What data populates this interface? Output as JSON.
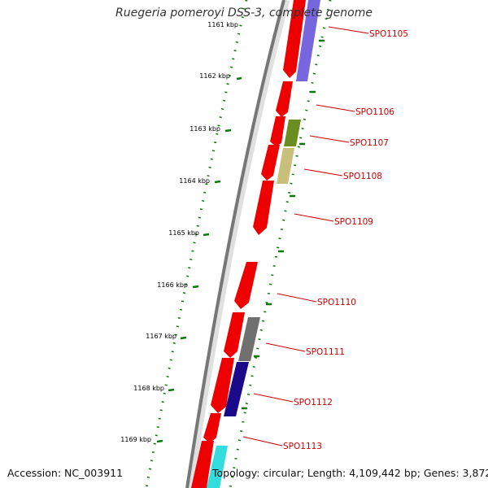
{
  "title": "Ruegeria pomeroyi DSS-3, complete genome",
  "footer": {
    "accession": "Accession: NC_003911",
    "summary": "Topology: circular; Length: 4,109,442 bp; Genes: 3,872"
  },
  "colors": {
    "background": "#ffffff",
    "backbone": "#777777",
    "cds": "#ee0000",
    "tick": "#0a7a0a",
    "gene_label": "#cc0000",
    "tick_label": "#000000"
  },
  "kbp_ticks": [
    "1161 kbp",
    "1162 kbp",
    "1163 kbp",
    "1164 kbp",
    "1165 kbp",
    "1166 kbp",
    "1167 kbp",
    "1168 kbp",
    "1169 kbp"
  ],
  "gene_labels": [
    "SPO1105",
    "SPO1106",
    "SPO1107",
    "SPO1108",
    "SPO1109",
    "SPO1110",
    "SPO1111",
    "SPO1112",
    "SPO1113"
  ],
  "feature_colors": [
    "#7766dd",
    "#6b8e23",
    "#c8bf7a",
    "#707070",
    "#1a0a8a",
    "#33dddd"
  ]
}
